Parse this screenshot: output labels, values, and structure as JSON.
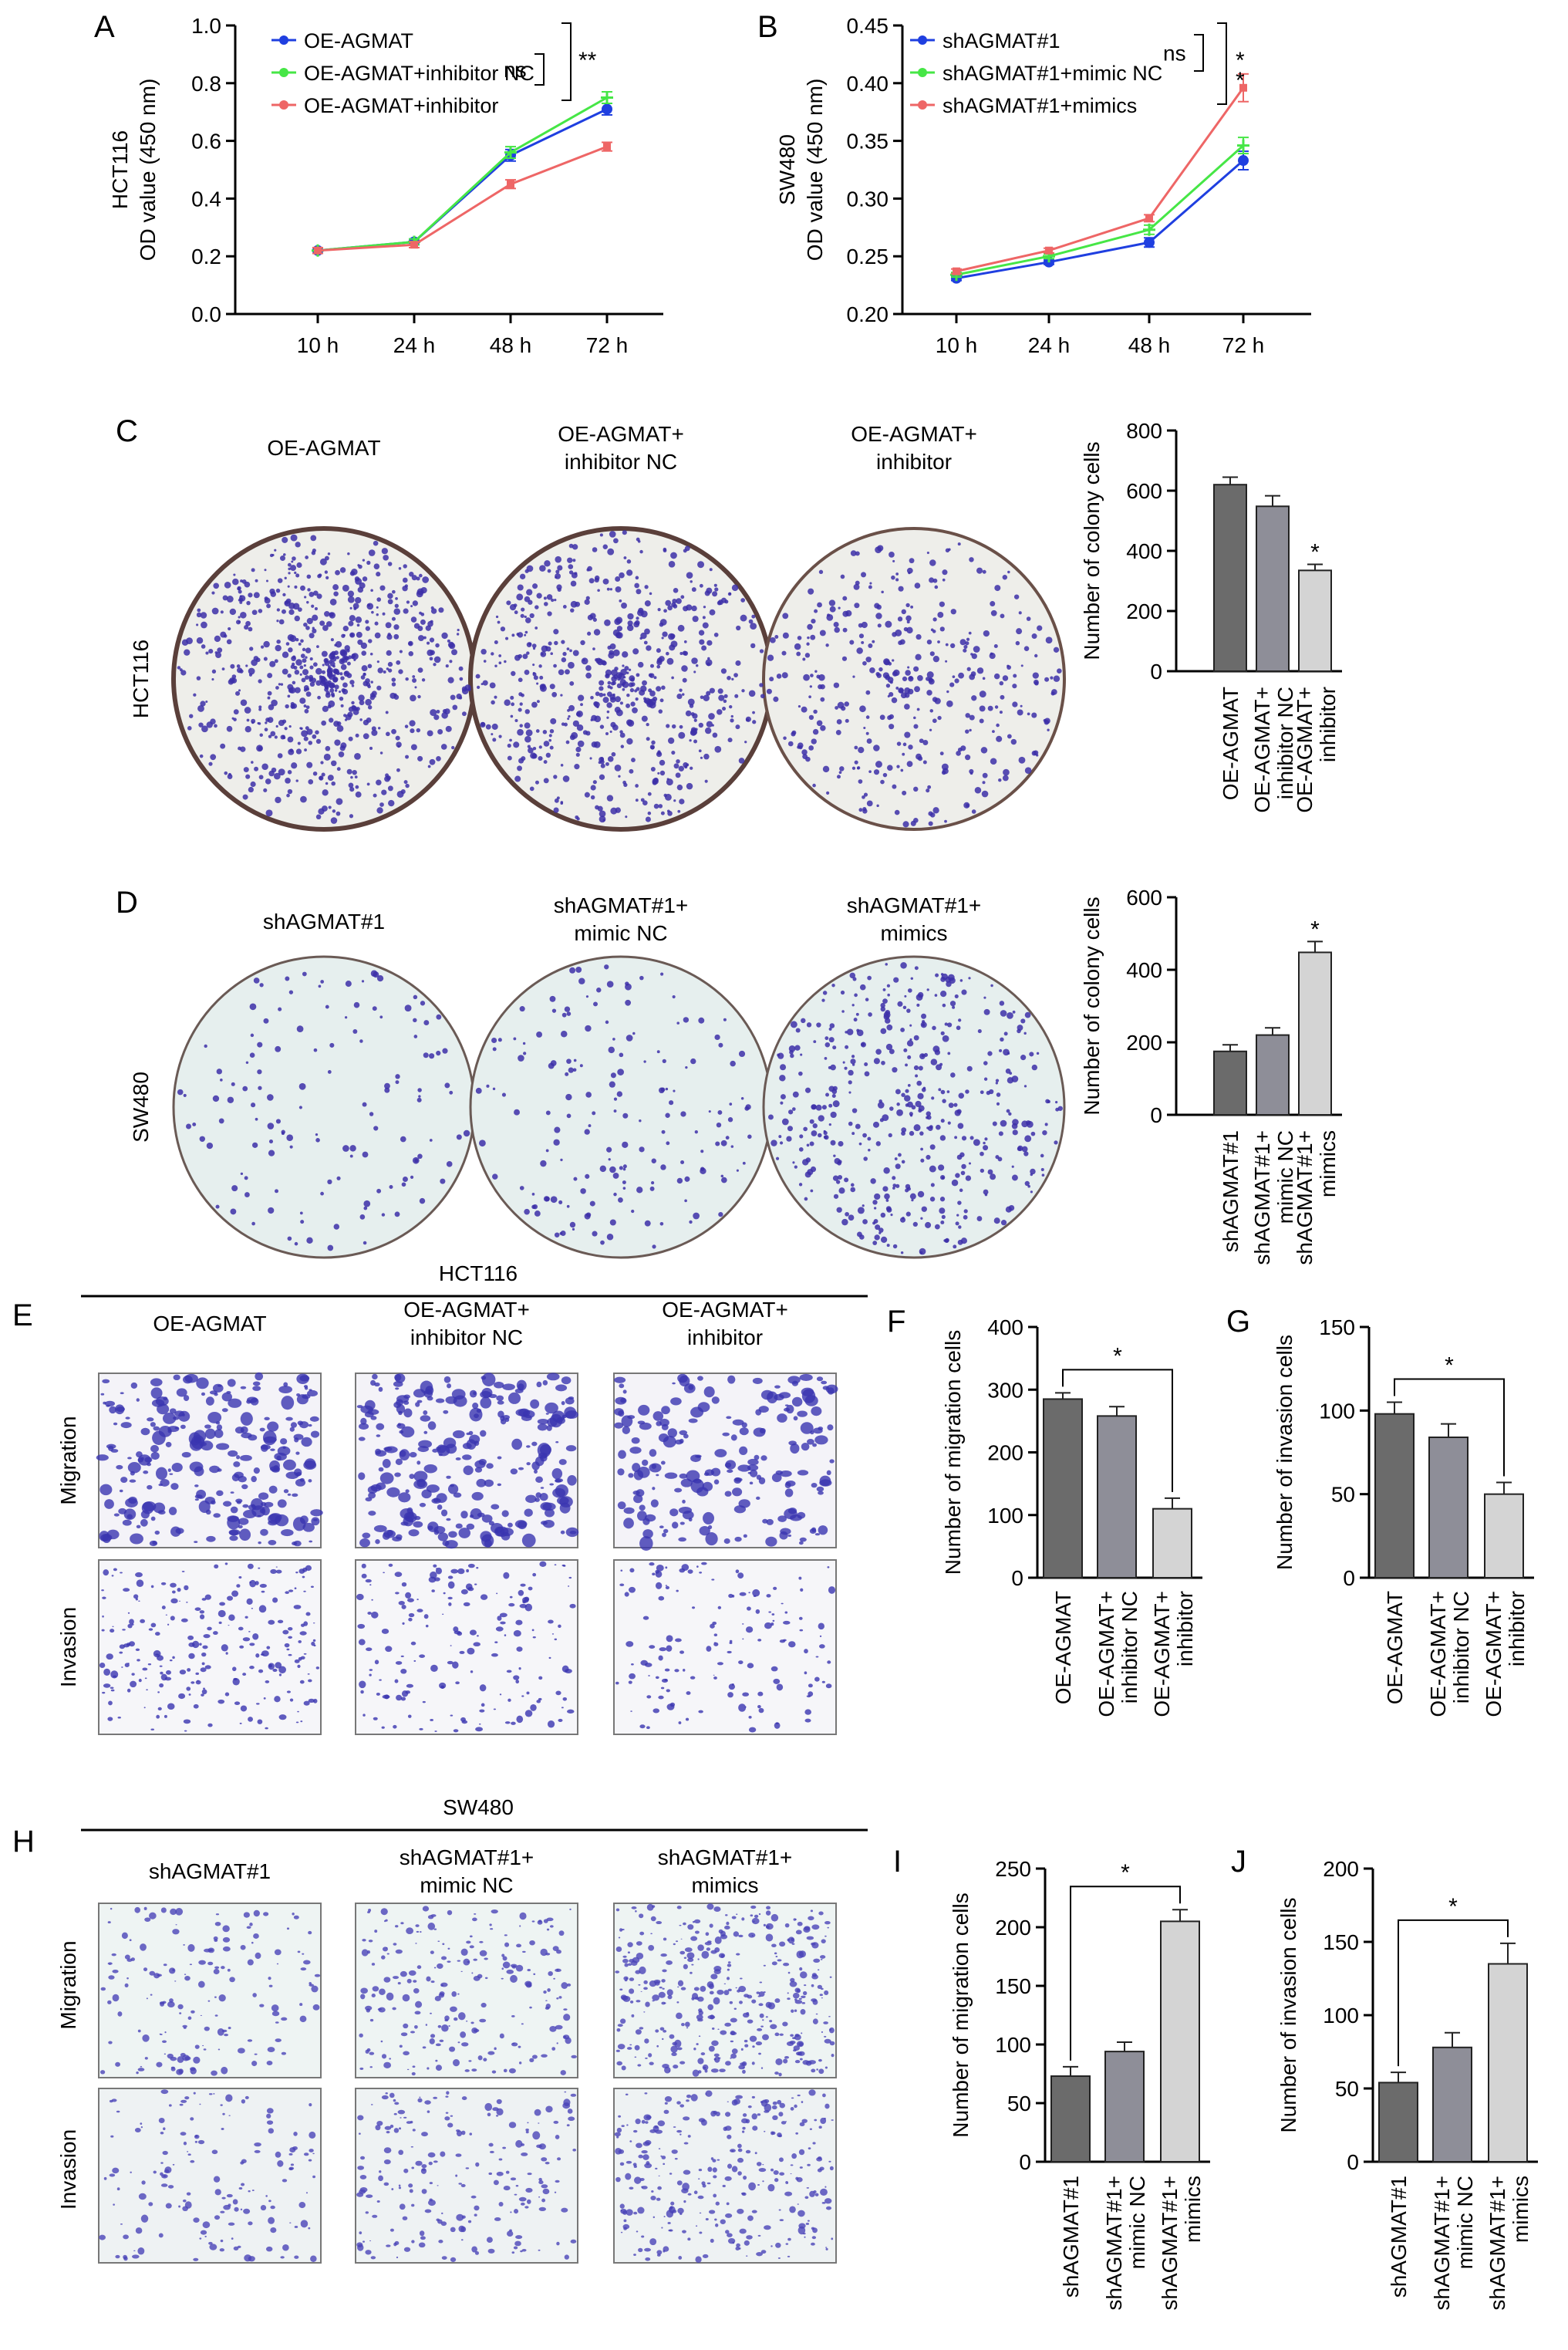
{
  "colors": {
    "blue": "#1f3fe0",
    "green": "#46e646",
    "red": "#ee6666",
    "bar_dark": "#6b6b6b",
    "bar_mid": "#8e8e98",
    "bar_light": "#d4d4d4",
    "dish_bg": "#eeeeea",
    "dish_bg2": "#e6efee",
    "stain": "#3c2fa8"
  },
  "panels": {
    "A": "A",
    "B": "B",
    "C": "C",
    "D": "D",
    "E": "E",
    "F": "F",
    "G": "G",
    "H": "H",
    "I": "I",
    "J": "J"
  },
  "groups": {
    "hct116": "HCT116",
    "sw480": "SW480",
    "migration": "Migration",
    "invasion": "Invasion"
  },
  "panel_c": {
    "col1": "OE-AGMAT",
    "col2_l1": "OE-AGMAT+",
    "col2_l2": "inhibitor NC",
    "col3_l1": "OE-AGMAT+",
    "col3_l2": "inhibitor",
    "row": "HCT116"
  },
  "panel_d": {
    "col1": "shAGMAT#1",
    "col2_l1": "shAGMAT#1+",
    "col2_l2": "mimic NC",
    "col3_l1": "shAGMAT#1+",
    "col3_l2": "mimics",
    "row": "SW480"
  },
  "panel_e": {
    "header": "HCT116",
    "col1": "OE-AGMAT",
    "col2_l1": "OE-AGMAT+",
    "col2_l2": "inhibitor NC",
    "col3_l1": "OE-AGMAT+",
    "col3_l2": "inhibitor"
  },
  "panel_h": {
    "header": "SW480",
    "col1": "shAGMAT#1",
    "col2_l1": "shAGMAT#1+",
    "col2_l2": "mimic NC",
    "col3_l1": "shAGMAT#1+",
    "col3_l2": "mimics"
  },
  "chart_data": [
    {
      "id": "A",
      "type": "line",
      "ylabel_1": "HCT116",
      "ylabel_2": "OD value (450 nm)",
      "x": [
        "10 h",
        "24 h",
        "48 h",
        "72 h"
      ],
      "ylim": [
        0.0,
        1.0
      ],
      "yticks": [
        "0.0",
        "0.2",
        "0.4",
        "0.6",
        "0.8",
        "1.0"
      ],
      "series": [
        {
          "name": "OE-AGMAT",
          "values": [
            0.22,
            0.25,
            0.55,
            0.71
          ],
          "errors": [
            0.01,
            0.01,
            0.02,
            0.02
          ]
        },
        {
          "name": "OE-AGMAT+inhibitor NC",
          "values": [
            0.22,
            0.25,
            0.56,
            0.75
          ],
          "errors": [
            0.01,
            0.01,
            0.02,
            0.02
          ]
        },
        {
          "name": "OE-AGMAT+inhibitor",
          "values": [
            0.22,
            0.24,
            0.45,
            0.58
          ],
          "errors": [
            0.01,
            0.01,
            0.015,
            0.015
          ]
        }
      ],
      "annotations": [
        "ns",
        "**"
      ]
    },
    {
      "id": "B",
      "type": "line",
      "ylabel_1": "SW480",
      "ylabel_2": "OD value (450 nm)",
      "x": [
        "10 h",
        "24 h",
        "48 h",
        "72 h"
      ],
      "ylim": [
        0.2,
        0.45
      ],
      "yticks": [
        "0.20",
        "0.25",
        "0.30",
        "0.35",
        "0.40",
        "0.45"
      ],
      "series": [
        {
          "name": "shAGMAT#1",
          "values": [
            0.231,
            0.245,
            0.262,
            0.333
          ],
          "errors": [
            0.002,
            0.002,
            0.004,
            0.008
          ]
        },
        {
          "name": "shAGMAT#1+mimic NC",
          "values": [
            0.234,
            0.25,
            0.273,
            0.346
          ],
          "errors": [
            0.002,
            0.002,
            0.004,
            0.007
          ]
        },
        {
          "name": "shAGMAT#1+mimics",
          "values": [
            0.237,
            0.255,
            0.283,
            0.396
          ],
          "errors": [
            0.002,
            0.002,
            0.003,
            0.012
          ]
        }
      ],
      "annotations": [
        "ns",
        "*",
        "*"
      ]
    },
    {
      "id": "C",
      "type": "bar",
      "ylabel": "Number of colony cells",
      "categories": [
        [
          "OE-AGMAT"
        ],
        [
          "OE-AGMAT+",
          "inhibitor NC"
        ],
        [
          "OE-AGMAT+",
          "inhibitor"
        ]
      ],
      "values": [
        620,
        548,
        335
      ],
      "errors": [
        25,
        35,
        20
      ],
      "ylim": [
        0,
        800
      ],
      "yticks": [
        "0",
        "200",
        "400",
        "600",
        "800"
      ],
      "annotations": [
        "*"
      ]
    },
    {
      "id": "D",
      "type": "bar",
      "ylabel": "Number of colony cells",
      "categories": [
        [
          "shAGMAT#1"
        ],
        [
          "shAGMAT#1+",
          "mimic NC"
        ],
        [
          "shAGMAT#1+",
          "mimics"
        ]
      ],
      "values": [
        175,
        220,
        448
      ],
      "errors": [
        18,
        20,
        30
      ],
      "ylim": [
        0,
        600
      ],
      "yticks": [
        "0",
        "200",
        "400",
        "600"
      ],
      "annotations": [
        "*"
      ]
    },
    {
      "id": "F",
      "type": "bar",
      "ylabel": "Number of migration cells",
      "categories": [
        [
          "OE-AGMAT"
        ],
        [
          "OE-AGMAT+",
          "inhibitor NC"
        ],
        [
          "OE-AGMAT+",
          "inhibitor"
        ]
      ],
      "values": [
        285,
        258,
        110
      ],
      "errors": [
        10,
        15,
        17
      ],
      "ylim": [
        0,
        400
      ],
      "yticks": [
        "0",
        "100",
        "200",
        "300",
        "400"
      ],
      "annotations": [
        "*"
      ]
    },
    {
      "id": "G",
      "type": "bar",
      "ylabel": "Number of invasion cells",
      "categories": [
        [
          "OE-AGMAT"
        ],
        [
          "OE-AGMAT+",
          "inhibitor NC"
        ],
        [
          "OE-AGMAT+",
          "inhibitor"
        ]
      ],
      "values": [
        98,
        84,
        50
      ],
      "errors": [
        7,
        8,
        7
      ],
      "ylim": [
        0,
        150
      ],
      "yticks": [
        "0",
        "50",
        "100",
        "150"
      ],
      "annotations": [
        "*"
      ]
    },
    {
      "id": "I",
      "type": "bar",
      "ylabel": "Number of migration cells",
      "categories": [
        [
          "shAGMAT#1"
        ],
        [
          "shAGMAT#1+",
          "mimic NC"
        ],
        [
          "shAGMAT#1+",
          "mimics"
        ]
      ],
      "values": [
        73,
        94,
        205
      ],
      "errors": [
        8,
        8,
        10
      ],
      "ylim": [
        0,
        250
      ],
      "yticks": [
        "0",
        "50",
        "100",
        "150",
        "200",
        "250"
      ],
      "annotations": [
        "*"
      ]
    },
    {
      "id": "J",
      "type": "bar",
      "ylabel": "Number of invasion cells",
      "categories": [
        [
          "shAGMAT#1"
        ],
        [
          "shAGMAT#1+",
          "mimic NC"
        ],
        [
          "shAGMAT#1+",
          "mimics"
        ]
      ],
      "values": [
        54,
        78,
        135
      ],
      "errors": [
        7,
        10,
        14
      ],
      "ylim": [
        0,
        200
      ],
      "yticks": [
        "0",
        "50",
        "100",
        "150",
        "200"
      ],
      "annotations": [
        "*"
      ]
    }
  ]
}
